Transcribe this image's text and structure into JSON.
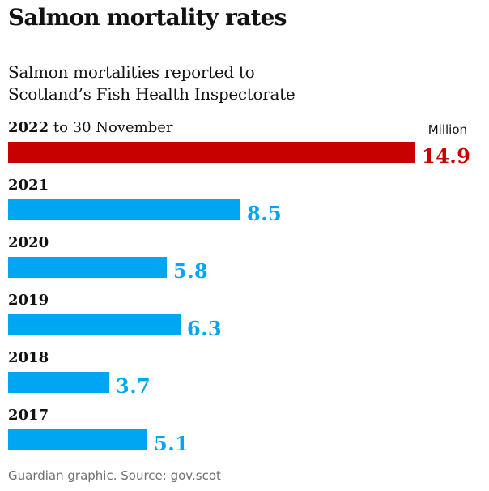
{
  "title": "Salmon mortality rates",
  "subtitle_lines": [
    "Salmon mortalities reported to",
    "Scotland’s Fish Health Inspectorate"
  ],
  "unit_label": "Million",
  "source": "Guardian graphic. Source: gov.scot",
  "colors": {
    "highlight": "#c70000",
    "default": "#00a6f2",
    "text": "#121212",
    "source_text": "#707070"
  },
  "chart_data": {
    "type": "bar",
    "orientation": "horizontal",
    "categories": [
      "2022 to 30 November",
      "2021",
      "2020",
      "2019",
      "2018",
      "2017"
    ],
    "category_year": [
      "2022",
      "2021",
      "2020",
      "2019",
      "2018",
      "2017"
    ],
    "category_suffix": [
      " to 30 November",
      "",
      "",
      "",
      "",
      ""
    ],
    "values": [
      14.9,
      8.5,
      5.8,
      6.3,
      3.7,
      5.1
    ],
    "value_labels": [
      "14.9",
      "8.5",
      "5.8",
      "6.3",
      "3.7",
      "5.1"
    ],
    "highlighted": [
      true,
      false,
      false,
      false,
      false,
      false
    ],
    "xlim": [
      0,
      14.9
    ],
    "grid": false,
    "unit": "Million"
  }
}
